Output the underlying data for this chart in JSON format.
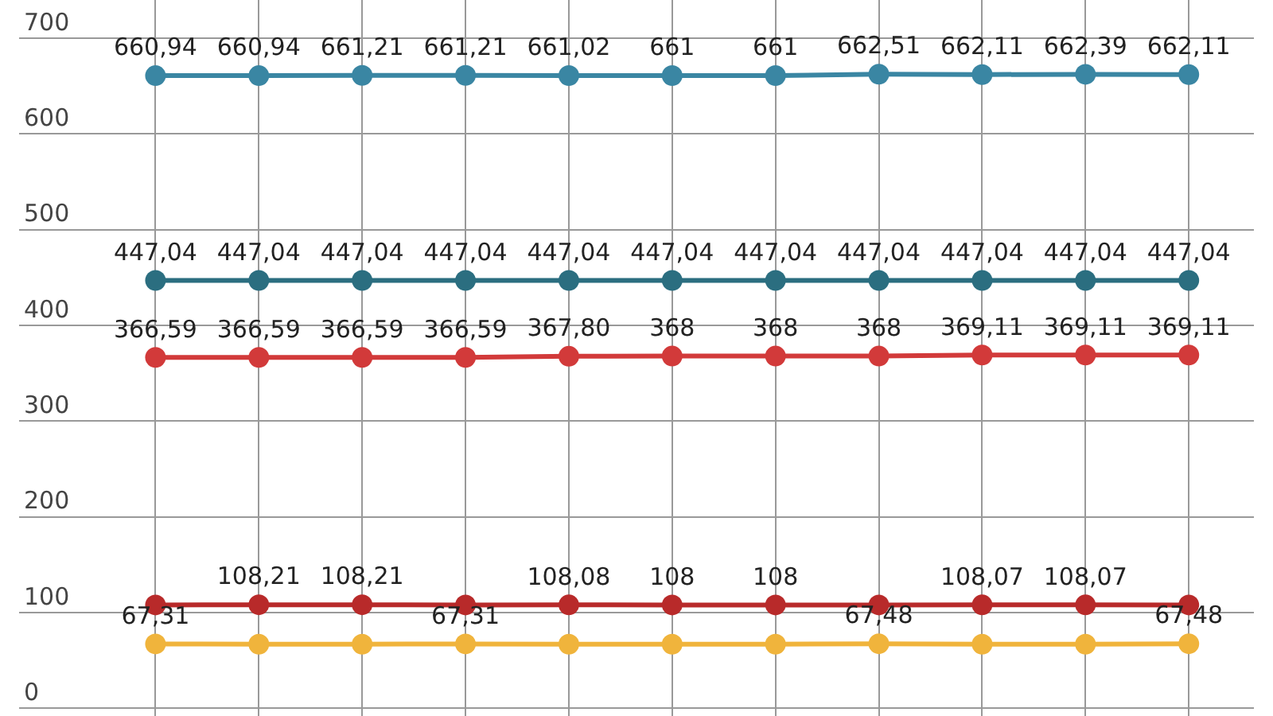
{
  "chart_data": {
    "type": "line",
    "categories": [
      null,
      null,
      null,
      null,
      null,
      null,
      null,
      null,
      null,
      null,
      null
    ],
    "ylim": [
      -8,
      740
    ],
    "yticks": [
      0,
      100,
      200,
      300,
      400,
      500,
      600,
      700
    ],
    "grid": true,
    "marker": "circle",
    "line_style": "solid",
    "series": [
      {
        "color": "#3a86a3",
        "values": [
          660.94,
          660.94,
          661.21,
          661.21,
          661.02,
          661,
          661,
          662.51,
          662.11,
          662.39,
          662.11
        ],
        "value_labels": [
          "660,94",
          "660,94",
          "661,21",
          "661,21",
          "661,02",
          "661",
          "661",
          "662,51",
          "662,11",
          "662,39",
          "662,11"
        ]
      },
      {
        "color": "#2b6e80",
        "values": [
          447.04,
          447.04,
          447.04,
          447.04,
          447.04,
          447.04,
          447.04,
          447.04,
          447.04,
          447.04,
          447.04
        ],
        "value_labels": [
          "447,04",
          "447,04",
          "447,04",
          "447,04",
          "447,04",
          "447,04",
          "447,04",
          "447,04",
          "447,04",
          "447,04",
          "447,04"
        ]
      },
      {
        "color": "#d23a3a",
        "values": [
          366.59,
          366.59,
          366.59,
          366.59,
          367.8,
          368,
          368,
          368,
          369.11,
          369.11,
          369.11
        ],
        "value_labels": [
          "366,59",
          "366,59",
          "366,59",
          "366,59",
          "367,80",
          "368",
          "368",
          "368",
          "369,11",
          "369,11",
          "369,11"
        ]
      },
      {
        "color": "#b82a2a",
        "values": [
          108,
          108.21,
          108.21,
          108,
          108.08,
          108,
          108,
          108,
          108.07,
          108.07,
          108
        ],
        "value_labels": [
          null,
          "108,21",
          "108,21",
          null,
          "108,08",
          "108",
          "108",
          null,
          "108,07",
          "108,07",
          null
        ]
      },
      {
        "color": "#f0b43c",
        "values": [
          67.31,
          67,
          67,
          67.31,
          67,
          67,
          67,
          67.48,
          67,
          67,
          67.48
        ],
        "value_labels": [
          "67,31",
          null,
          null,
          "67,31",
          null,
          null,
          null,
          "67,48",
          null,
          null,
          "67,48"
        ]
      }
    ]
  }
}
